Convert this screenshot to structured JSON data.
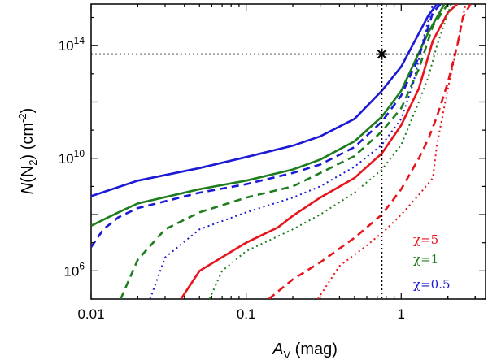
{
  "chart_data": {
    "type": "line",
    "title": "",
    "xlabel": {
      "main": "A",
      "sub": "V",
      "rest": " (mag)"
    },
    "ylabel": {
      "main": "N",
      "mid1": "(N",
      "sub": "2",
      "mid2": ") (cm",
      "sup": "-2",
      "end": ")"
    },
    "x_scale": "log",
    "y_scale": "log",
    "xlim": [
      0.01,
      3.5
    ],
    "ylim": [
      100000,
      3000000000000000.0
    ],
    "x_ticks": [
      {
        "value": 0.01,
        "label": "0.01"
      },
      {
        "value": 0.1,
        "label": "0.1"
      },
      {
        "value": 1,
        "label": "1"
      }
    ],
    "y_ticks": [
      {
        "value": 1000000,
        "label": "10",
        "sup": "6"
      },
      {
        "value": 10000000000,
        "label": "10",
        "sup": "10"
      },
      {
        "value": 100000000000000,
        "label": "10",
        "sup": "14"
      }
    ],
    "colors": {
      "chi5": "#e8141c",
      "chi1": "#1e7d1e",
      "chi05": "#1a1ad6"
    },
    "legend": {
      "placement": "bottom-right",
      "entries": [
        {
          "label": "χ=5",
          "color": "#e8141c"
        },
        {
          "label": "χ=1",
          "color": "#1e7d1e"
        },
        {
          "label": "χ=0.5",
          "color": "#1a1ad6"
        }
      ]
    },
    "reference_lines": {
      "x": 0.75,
      "y": 50000000000000
    },
    "marker": {
      "x": 0.75,
      "y": 50000000000000,
      "symbol": "star"
    },
    "series": [
      {
        "color": "#1a1ad6",
        "dash": "solid",
        "points": [
          [
            0.01,
            450000000.0
          ],
          [
            0.02,
            1600000000.0
          ],
          [
            0.05,
            4500000000.0
          ],
          [
            0.1,
            11000000000.0
          ],
          [
            0.2,
            28000000000.0
          ],
          [
            0.3,
            60000000000.0
          ],
          [
            0.5,
            250000000000.0
          ],
          [
            0.75,
            2500000000000.0
          ],
          [
            1.0,
            18000000000000.0
          ],
          [
            1.5,
            1200000000000000.0
          ],
          [
            1.7,
            3000000000000000.0
          ]
        ]
      },
      {
        "color": "#1e7d1e",
        "dash": "solid",
        "points": [
          [
            0.01,
            40000000.0
          ],
          [
            0.015,
            120000000.0
          ],
          [
            0.02,
            250000000.0
          ],
          [
            0.05,
            800000000.0
          ],
          [
            0.1,
            1600000000.0
          ],
          [
            0.2,
            4000000000.0
          ],
          [
            0.3,
            9000000000.0
          ],
          [
            0.5,
            40000000000.0
          ],
          [
            0.75,
            300000000000.0
          ],
          [
            1.0,
            2500000000000.0
          ],
          [
            1.5,
            300000000000000.0
          ],
          [
            1.9,
            3000000000000000.0
          ]
        ]
      },
      {
        "color": "#1a1ad6",
        "dash": "dash",
        "points": [
          [
            0.01,
            7000000.0
          ],
          [
            0.012,
            30000000.0
          ],
          [
            0.015,
            80000000.0
          ],
          [
            0.02,
            170000000.0
          ],
          [
            0.05,
            600000000.0
          ],
          [
            0.1,
            1200000000.0
          ],
          [
            0.2,
            3000000000.0
          ],
          [
            0.3,
            6000000000.0
          ],
          [
            0.5,
            25000000000.0
          ],
          [
            0.75,
            200000000000.0
          ],
          [
            1.0,
            1700000000000.0
          ],
          [
            1.3,
            40000000000000.0
          ],
          [
            1.6,
            1500000000000000.0
          ],
          [
            1.8,
            3000000000000000.0
          ]
        ]
      },
      {
        "color": "#1e7d1e",
        "dash": "dash",
        "points": [
          [
            0.0155,
            100000.0
          ],
          [
            0.02,
            2500000.0
          ],
          [
            0.03,
            30000000.0
          ],
          [
            0.05,
            120000000.0
          ],
          [
            0.1,
            400000000.0
          ],
          [
            0.2,
            1000000000.0
          ],
          [
            0.3,
            3000000000.0
          ],
          [
            0.5,
            12000000000.0
          ],
          [
            0.75,
            90000000000.0
          ],
          [
            1.0,
            600000000000.0
          ],
          [
            1.3,
            15000000000000.0
          ],
          [
            1.6,
            500000000000000.0
          ],
          [
            2.0,
            3000000000000000.0
          ]
        ]
      },
      {
        "color": "#1a1ad6",
        "dash": "dot",
        "points": [
          [
            0.024,
            100000.0
          ],
          [
            0.03,
            3000000.0
          ],
          [
            0.05,
            30000000.0
          ],
          [
            0.1,
            120000000.0
          ],
          [
            0.2,
            400000000.0
          ],
          [
            0.3,
            1000000000.0
          ],
          [
            0.5,
            5000000000.0
          ],
          [
            0.75,
            30000000000.0
          ],
          [
            1.0,
            250000000000.0
          ],
          [
            1.2,
            5000000000000.0
          ],
          [
            1.4,
            200000000000000.0
          ],
          [
            1.6,
            3000000000000000.0
          ]
        ]
      },
      {
        "color": "#e8141c",
        "dash": "solid",
        "points": [
          [
            0.038,
            100000.0
          ],
          [
            0.05,
            1000000.0
          ],
          [
            0.1,
            10000000.0
          ],
          [
            0.16,
            35000000.0
          ],
          [
            0.2,
            90000000.0
          ],
          [
            0.3,
            400000000.0
          ],
          [
            0.5,
            2000000000.0
          ],
          [
            0.75,
            15000000000.0
          ],
          [
            1.0,
            150000000000.0
          ],
          [
            1.3,
            3000000000000.0
          ],
          [
            1.6,
            150000000000000.0
          ],
          [
            2.0,
            1500000000000000.0
          ],
          [
            2.3,
            3000000000000000.0
          ]
        ]
      },
      {
        "color": "#1e7d1e",
        "dash": "dot",
        "points": [
          [
            0.058,
            100000.0
          ],
          [
            0.07,
            1000000.0
          ],
          [
            0.1,
            5000000.0
          ],
          [
            0.2,
            30000000.0
          ],
          [
            0.3,
            100000000.0
          ],
          [
            0.5,
            600000000.0
          ],
          [
            0.75,
            4000000000.0
          ],
          [
            1.0,
            30000000000.0
          ],
          [
            1.3,
            1000000000000.0
          ],
          [
            1.5,
            8000000000000.0
          ],
          [
            1.7,
            100000000000000.0
          ],
          [
            2.1,
            3000000000000000.0
          ]
        ]
      },
      {
        "color": "#e8141c",
        "dash": "dash",
        "points": [
          [
            0.14,
            100000.0
          ],
          [
            0.2,
            500000.0
          ],
          [
            0.3,
            2000000.0
          ],
          [
            0.5,
            15000000.0
          ],
          [
            0.75,
            100000000.0
          ],
          [
            1.0,
            800000000.0
          ],
          [
            1.3,
            10000000000.0
          ],
          [
            1.5,
            50000000000.0
          ],
          [
            1.7,
            300000000000.0
          ],
          [
            2.0,
            5000000000000.0
          ],
          [
            2.3,
            100000000000000.0
          ],
          [
            2.5,
            1000000000000000.0
          ],
          [
            2.8,
            3000000000000000.0
          ]
        ]
      },
      {
        "color": "#e8141c",
        "dash": "dot",
        "points": [
          [
            0.29,
            100000.0
          ],
          [
            0.4,
            1500000.0
          ],
          [
            0.6,
            8000000.0
          ],
          [
            0.8,
            30000000.0
          ],
          [
            1.0,
            100000000.0
          ],
          [
            1.3,
            500000000.0
          ],
          [
            1.6,
            2000000000.0
          ],
          [
            1.7,
            30000000000.0
          ],
          [
            2.0,
            3000000000000.0
          ],
          [
            2.3,
            100000000000000.0
          ],
          [
            2.6,
            3000000000000000.0
          ]
        ]
      }
    ]
  }
}
